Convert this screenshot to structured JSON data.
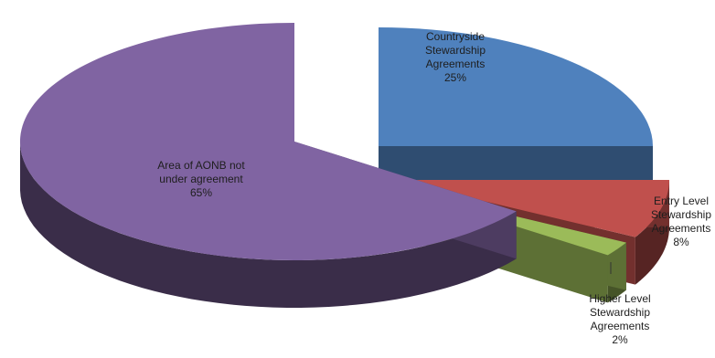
{
  "chart_data": {
    "type": "pie",
    "title": "",
    "slices": [
      {
        "lines": [
          "Countryside",
          "Stewardship",
          "Agreements",
          "25%"
        ],
        "value": 25,
        "color": "#4f81bd"
      },
      {
        "lines": [
          "Entry Level",
          "Stewardship",
          "Agreements",
          "8%"
        ],
        "value": 8,
        "color": "#c0504d"
      },
      {
        "lines": [
          "Higher Level",
          "Stewardship",
          "Agreements",
          "2%"
        ],
        "value": 2,
        "color": "#9bbb59"
      },
      {
        "lines": [
          "Area of AONB not",
          "under agreement",
          "65%"
        ],
        "value": 65,
        "color": "#8064a2"
      }
    ],
    "legend": "none",
    "grid": false
  }
}
